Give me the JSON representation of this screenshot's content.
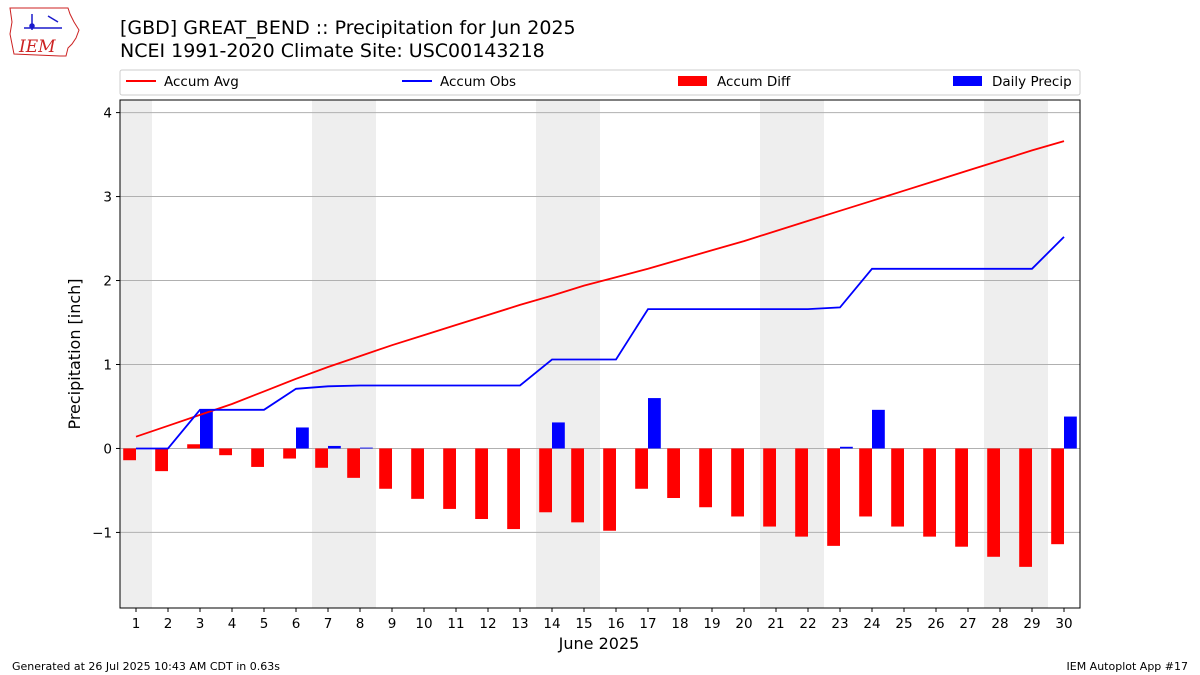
{
  "header": {
    "logo_text": "IEM",
    "title_line1": "[GBD] GREAT_BEND :: Precipitation for Jun 2025",
    "title_line2": "NCEI 1991-2020 Climate Site: USC00143218"
  },
  "footer": {
    "left": "Generated at 26 Jul 2025 10:43 AM CDT in 0.63s",
    "right": "IEM Autoplot App #17"
  },
  "colors": {
    "accum_avg": "#ff0000",
    "accum_obs": "#0000ff",
    "accum_diff": "#ff0000",
    "daily_precip": "#0000ff",
    "weekend_shade": "#eeeeee",
    "grid": "#b0b0b0"
  },
  "chart_data": {
    "type": "bar",
    "title": "[GBD] GREAT_BEND :: Precipitation for Jun 2025",
    "subtitle": "NCEI 1991-2020 Climate Site: USC00143218",
    "xlabel": "June 2025",
    "ylabel": "Precipitation [inch]",
    "xlim": [
      0.5,
      30.5
    ],
    "ylim": [
      -1.9,
      4.15
    ],
    "yticks": [
      -1,
      0,
      1,
      2,
      3,
      4
    ],
    "ytick_labels": [
      "−1",
      "0",
      "1",
      "2",
      "3",
      "4"
    ],
    "categories": [
      "1",
      "2",
      "3",
      "4",
      "5",
      "6",
      "7",
      "8",
      "9",
      "10",
      "11",
      "12",
      "13",
      "14",
      "15",
      "16",
      "17",
      "18",
      "19",
      "20",
      "21",
      "22",
      "23",
      "24",
      "25",
      "26",
      "27",
      "28",
      "29",
      "30"
    ],
    "grid": "y-axis on",
    "legend_position": "top, above plot area",
    "shaded_days": [
      1,
      7,
      8,
      14,
      15,
      21,
      22,
      28,
      29
    ],
    "series": [
      {
        "name": "Accum Avg",
        "kind": "line",
        "color": "#ff0000",
        "values": [
          0.14,
          0.27,
          0.4,
          0.53,
          0.68,
          0.83,
          0.97,
          1.1,
          1.23,
          1.35,
          1.47,
          1.59,
          1.71,
          1.82,
          1.94,
          2.04,
          2.14,
          2.25,
          2.36,
          2.47,
          2.59,
          2.71,
          2.83,
          2.95,
          3.07,
          3.19,
          3.31,
          3.43,
          3.55,
          3.66
        ]
      },
      {
        "name": "Accum Obs",
        "kind": "line",
        "color": "#0000ff",
        "values": [
          0,
          0,
          0.46,
          0.46,
          0.46,
          0.71,
          0.74,
          0.75,
          0.75,
          0.75,
          0.75,
          0.75,
          0.75,
          1.06,
          1.06,
          1.06,
          1.66,
          1.66,
          1.66,
          1.66,
          1.66,
          1.66,
          1.68,
          2.14,
          2.14,
          2.14,
          2.14,
          2.14,
          2.14,
          2.52
        ]
      },
      {
        "name": "Accum Diff",
        "kind": "bar",
        "color": "#ff0000",
        "values": [
          -0.14,
          -0.27,
          0.05,
          -0.08,
          -0.22,
          -0.12,
          -0.23,
          -0.35,
          -0.48,
          -0.6,
          -0.72,
          -0.84,
          -0.96,
          -0.76,
          -0.88,
          -0.98,
          -0.48,
          -0.59,
          -0.7,
          -0.81,
          -0.93,
          -1.05,
          -1.16,
          -0.81,
          -0.93,
          -1.05,
          -1.17,
          -1.29,
          -1.41,
          -1.14
        ]
      },
      {
        "name": "Daily Precip",
        "kind": "bar",
        "color": "#0000ff",
        "values": [
          0,
          0,
          0.46,
          0,
          0,
          0.25,
          0.03,
          0.01,
          0,
          0,
          0,
          0,
          0,
          0.31,
          0,
          0,
          0.6,
          0,
          0,
          0,
          0,
          0,
          0.02,
          0.46,
          0,
          0,
          0,
          0,
          0,
          0.38
        ]
      }
    ]
  }
}
